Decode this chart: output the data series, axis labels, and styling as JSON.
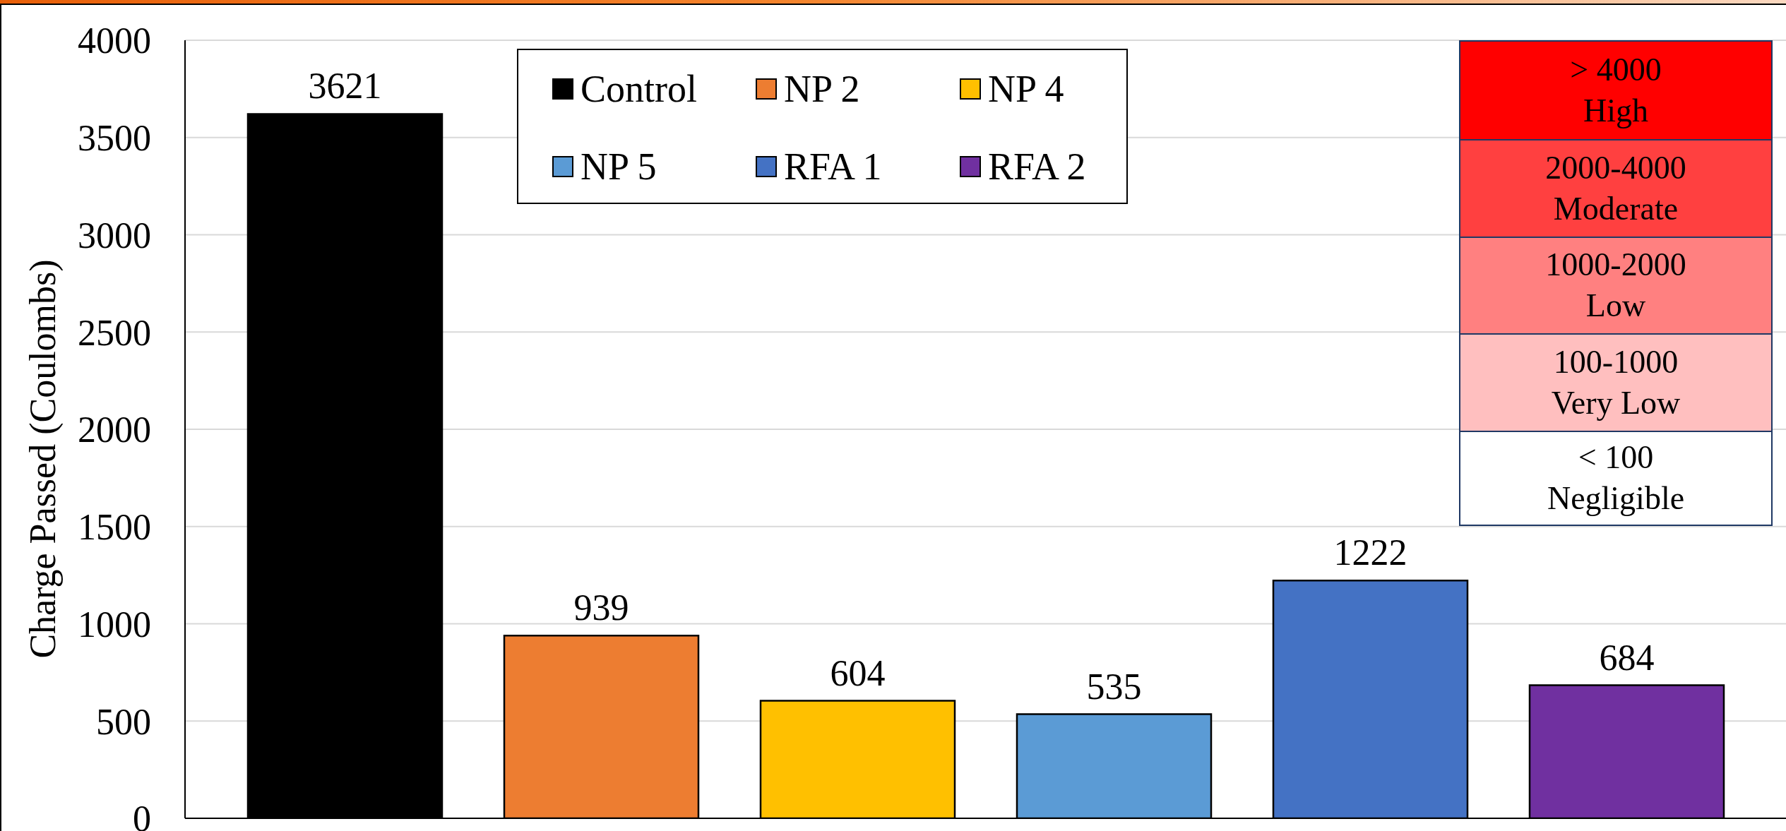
{
  "chart_data": {
    "type": "bar",
    "ylabel": "Charge Passed (Coulombs)",
    "categories": [
      null,
      null,
      null,
      null,
      null,
      null
    ],
    "series": [
      {
        "name": "Control",
        "color": "#000000",
        "values": [
          3621,
          null,
          null,
          null,
          null,
          null
        ]
      },
      {
        "name": "NP 2",
        "color": "#ed7d31",
        "values": [
          null,
          939,
          null,
          null,
          null,
          null
        ]
      },
      {
        "name": "NP 4",
        "color": "#ffc000",
        "values": [
          null,
          null,
          604,
          null,
          null,
          null
        ]
      },
      {
        "name": "NP 5",
        "color": "#5b9bd5",
        "values": [
          null,
          null,
          null,
          535,
          null,
          null
        ]
      },
      {
        "name": "RFA 1",
        "color": "#4472c4",
        "values": [
          null,
          null,
          null,
          null,
          1222,
          null
        ]
      },
      {
        "name": "RFA 2",
        "color": "#7030a0",
        "values": [
          null,
          null,
          null,
          null,
          null,
          684
        ]
      }
    ],
    "ylim": [
      0,
      4000
    ],
    "yticks": [
      0,
      500,
      1000,
      1500,
      2000,
      2500,
      3000,
      3500,
      4000
    ],
    "grid": "y",
    "legend": "top",
    "data_labels": true,
    "annotations": [
      "> 4000\nHigh",
      "2000-4000\nModerate",
      "1000-2000\nLow",
      "100-1000\nVery Low",
      "< 100\nNegligible"
    ]
  }
}
